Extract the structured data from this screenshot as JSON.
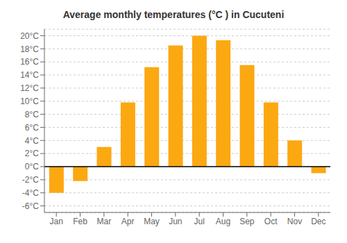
{
  "chart_data": {
    "type": "bar",
    "title": "Average monthly temperatures (°C ) in Cucuteni",
    "categories": [
      "Jan",
      "Feb",
      "Mar",
      "Apr",
      "May",
      "Jun",
      "Jul",
      "Aug",
      "Sep",
      "Oct",
      "Nov",
      "Dec"
    ],
    "values": [
      -4.0,
      -2.2,
      3.0,
      9.8,
      15.2,
      18.5,
      20.0,
      19.3,
      15.5,
      9.8,
      4.0,
      -1.0
    ],
    "color": "#FCA811",
    "ylim": [
      -7,
      21
    ],
    "yticks": [
      {
        "value": -6,
        "label": "-6°C"
      },
      {
        "value": -4,
        "label": "-4°C"
      },
      {
        "value": -2,
        "label": "-2°C"
      },
      {
        "value": 0,
        "label": "0°C"
      },
      {
        "value": 2,
        "label": "2°C"
      },
      {
        "value": 4,
        "label": "4°C"
      },
      {
        "value": 6,
        "label": "6°C"
      },
      {
        "value": 8,
        "label": "8°C"
      },
      {
        "value": 10,
        "label": "10°C"
      },
      {
        "value": 12,
        "label": "12°C"
      },
      {
        "value": 14,
        "label": "14°C"
      },
      {
        "value": 16,
        "label": "16°C"
      },
      {
        "value": 18,
        "label": "18°C"
      },
      {
        "value": 20,
        "label": "20°C"
      }
    ],
    "grid": true
  }
}
